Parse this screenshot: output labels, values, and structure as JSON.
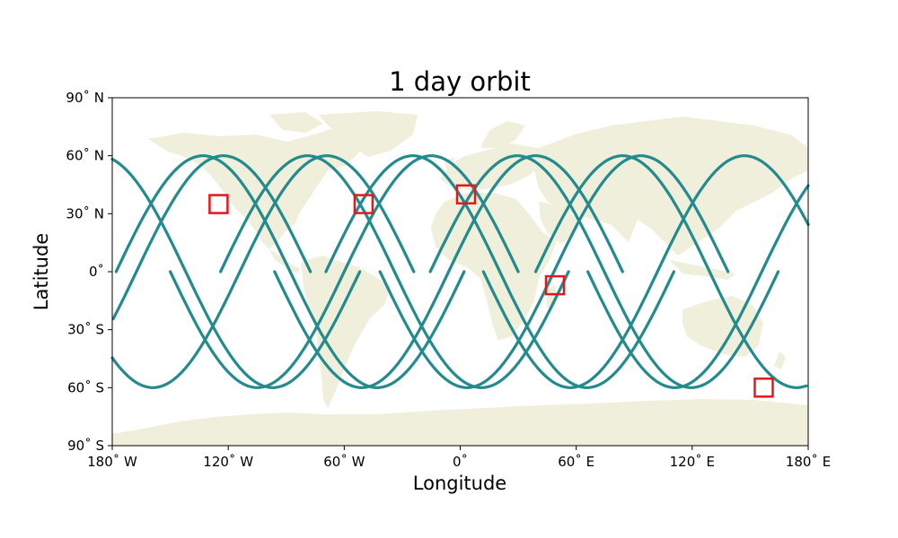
{
  "chart_data": {
    "type": "scatter",
    "title": "1 day orbit",
    "xlabel": "Longitude",
    "ylabel": "Latitude",
    "xlim": [
      -180,
      180
    ],
    "ylim": [
      -90,
      90
    ],
    "xticks": [
      {
        "value": -180,
        "label": "180˚ W"
      },
      {
        "value": -120,
        "label": "120˚ W"
      },
      {
        "value": -60,
        "label": "60˚ W"
      },
      {
        "value": 0,
        "label": "0˚"
      },
      {
        "value": 60,
        "label": "60˚ E"
      },
      {
        "value": 120,
        "label": "120˚ E"
      },
      {
        "value": 180,
        "label": "180˚ E"
      }
    ],
    "yticks": [
      {
        "value": 90,
        "label": "90˚ N"
      },
      {
        "value": 60,
        "label": "60˚ N"
      },
      {
        "value": 30,
        "label": "30˚ N"
      },
      {
        "value": 0,
        "label": "0˚"
      },
      {
        "value": -30,
        "label": "30˚ S"
      },
      {
        "value": -60,
        "label": "60˚ S"
      },
      {
        "value": -90,
        "label": "90˚ S"
      }
    ],
    "grid": false,
    "orbit": {
      "description": "sinusoidal ground tracks",
      "max_latitude": 60,
      "ascending_equator_crossings": [
        -167.5,
        -114,
        -60,
        -6,
        48.5,
        102,
        156
      ],
      "descending_equator_crossings": [
        -142,
        -88,
        -34,
        20.5,
        74.5,
        129
      ],
      "track_color": "#238a8d"
    },
    "highlight_boxes": [
      {
        "lon": -125,
        "lat": 35
      },
      {
        "lon": -50,
        "lat": 35
      },
      {
        "lon": 3,
        "lat": 40
      },
      {
        "lon": 49,
        "lat": -7
      },
      {
        "lon": 157,
        "lat": -60
      }
    ],
    "colors": {
      "land": "#efefdb",
      "track": "#238a8d",
      "box": "#e8161b"
    }
  }
}
